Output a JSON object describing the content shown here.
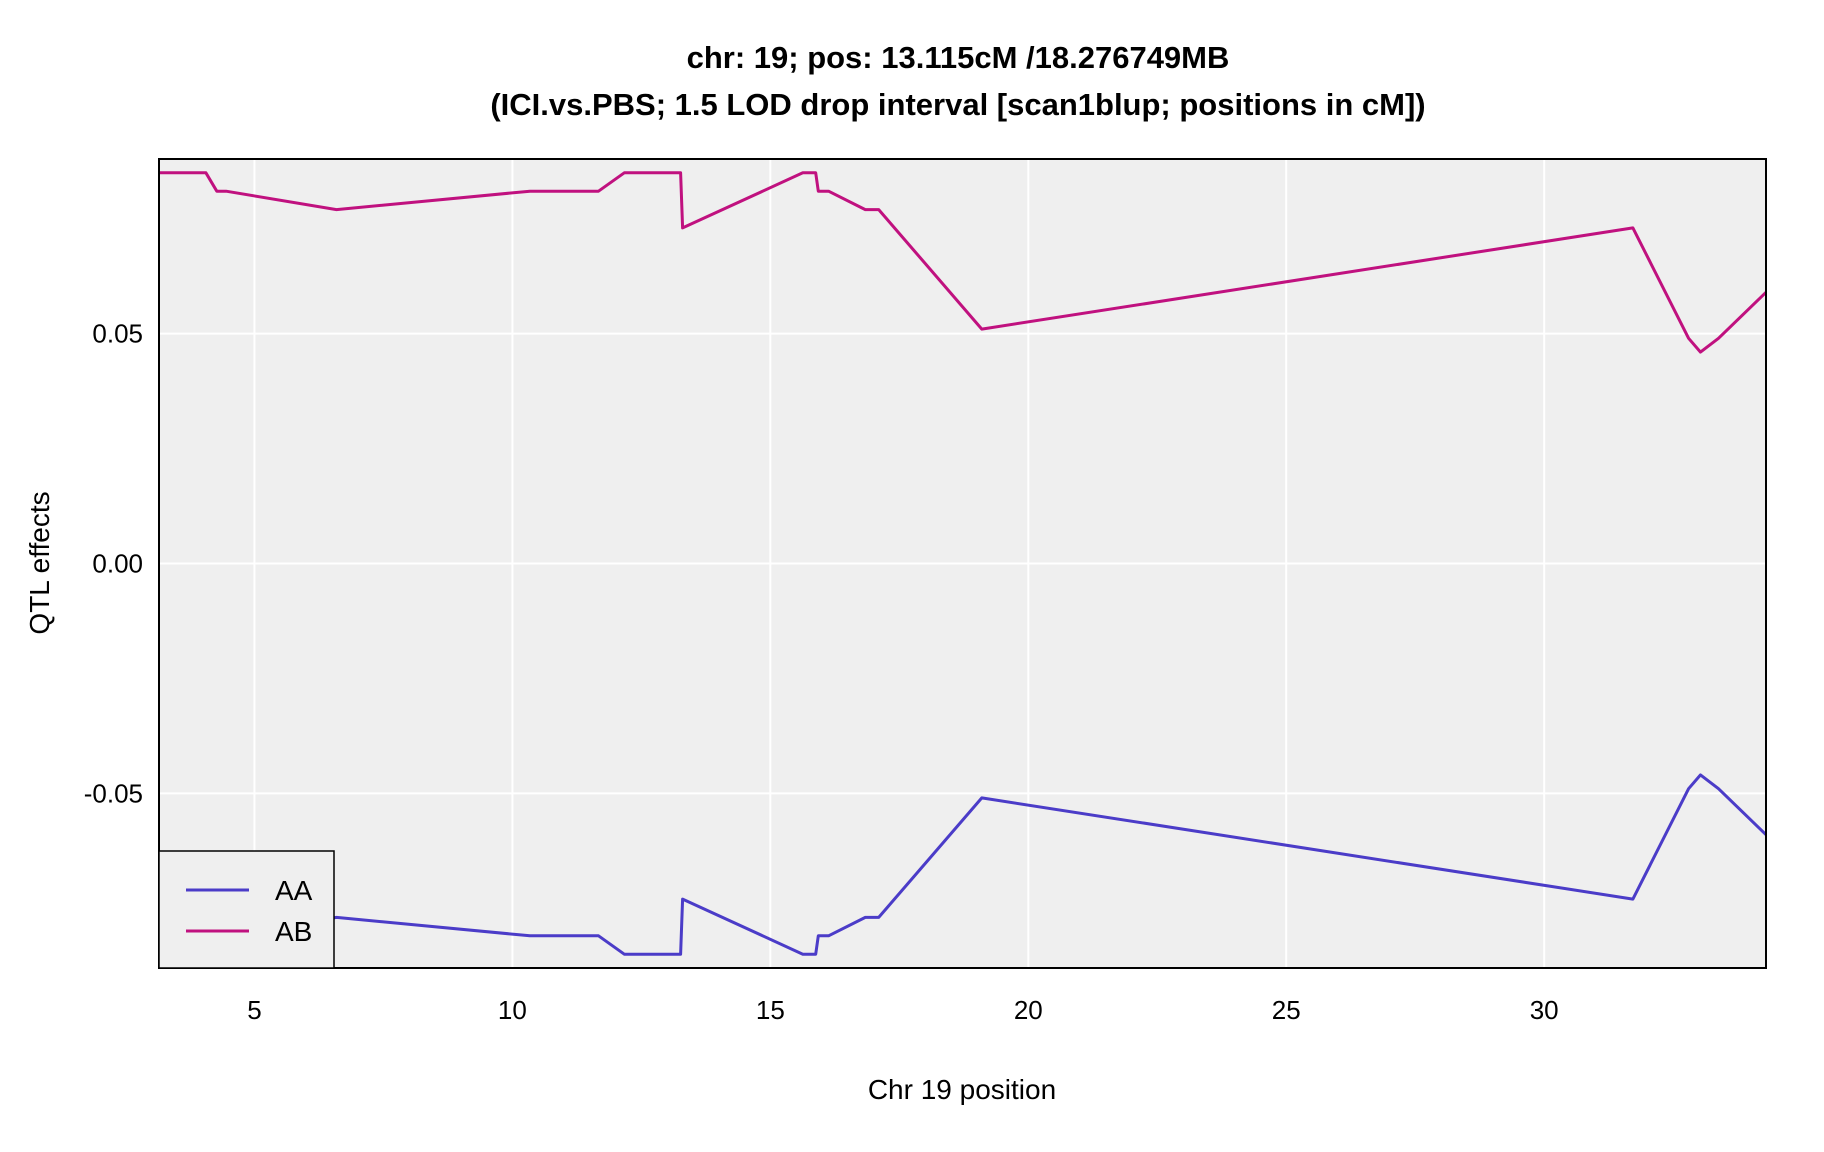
{
  "chart_data": {
    "type": "line",
    "title": "chr: 19; pos: 13.115cM /18.276749MB",
    "subtitle": "(ICI.vs.PBS; 1.5 LOD drop interval [scan1blup; positions in cM])",
    "xlabel": "Chr 19 position",
    "ylabel": "QTL effects",
    "xlim": [
      3.15,
      34.3
    ],
    "ylim": [
      -0.088,
      0.088
    ],
    "xticks": [
      5,
      10,
      15,
      20,
      25,
      30
    ],
    "xtick_labels": [
      "5",
      "10",
      "15",
      "20",
      "25",
      "30"
    ],
    "yticks": [
      0.05,
      0.0,
      -0.05
    ],
    "ytick_labels": [
      "0.05",
      "0.00",
      "-0.05"
    ],
    "grid": true,
    "legend_position": "bottom-left",
    "background": "#efefef",
    "series": [
      {
        "name": "AA",
        "color": "#4b3cc8",
        "x": [
          3.15,
          4.06,
          4.27,
          4.45,
          6.59,
          10.34,
          11.67,
          12.17,
          13.26,
          13.3,
          15.63,
          15.88,
          15.93,
          16.13,
          16.84,
          17.1,
          19.1,
          31.72,
          32.8,
          33.03,
          33.38,
          34.3
        ],
        "y": [
          -0.085,
          -0.085,
          -0.081,
          -0.081,
          -0.077,
          -0.081,
          -0.081,
          -0.085,
          -0.085,
          -0.073,
          -0.085,
          -0.085,
          -0.081,
          -0.081,
          -0.077,
          -0.077,
          -0.051,
          -0.073,
          -0.049,
          -0.046,
          -0.049,
          -0.059
        ]
      },
      {
        "name": "AB",
        "color": "#c0117f",
        "x": [
          3.15,
          4.06,
          4.27,
          4.45,
          6.59,
          10.34,
          11.67,
          12.17,
          13.26,
          13.3,
          15.63,
          15.88,
          15.93,
          16.13,
          16.84,
          17.1,
          19.1,
          31.72,
          32.8,
          33.03,
          33.38,
          34.3
        ],
        "y": [
          0.085,
          0.085,
          0.081,
          0.081,
          0.077,
          0.081,
          0.081,
          0.085,
          0.085,
          0.073,
          0.085,
          0.085,
          0.081,
          0.081,
          0.077,
          0.077,
          0.051,
          0.073,
          0.049,
          0.046,
          0.049,
          0.059
        ]
      }
    ]
  }
}
